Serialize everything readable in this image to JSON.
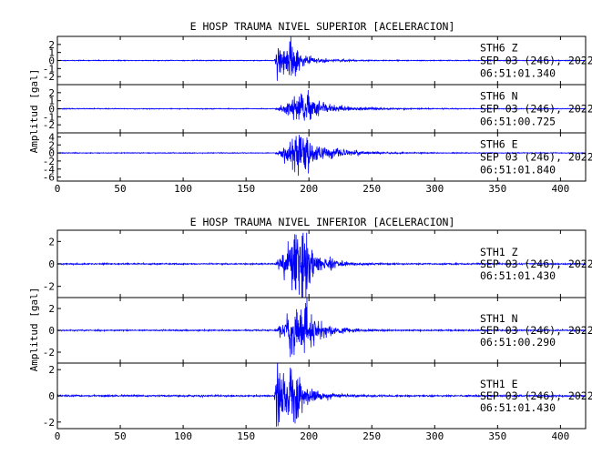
{
  "colors": {
    "trace": "#0000ff",
    "axes": "#000000",
    "background": "#ffffff"
  },
  "chart_data": [
    {
      "type": "line",
      "title": "E HOSP TRAUMA NIVEL SUPERIOR [ACELERACION]",
      "xlabel": "",
      "ylabel": "Amplitud [gal]",
      "xlim": [
        0,
        420
      ],
      "x_ticks": [
        0,
        50,
        100,
        150,
        200,
        250,
        300,
        350,
        400
      ],
      "grid": false,
      "panels": [
        {
          "station": "STH6",
          "component": "Z",
          "date_line": "SEP 03 (246), 2022",
          "time_line": "06:51:01.340",
          "ylim": [
            -3,
            3
          ],
          "y_ticks": [
            -2,
            -1,
            0,
            1,
            2
          ],
          "onset": 172,
          "peak_time": 175,
          "peak_amplitude": 1.9,
          "decay": 15,
          "second_phase_time": 188,
          "second_phase_amplitude": 1.3,
          "noise": 0.04,
          "seed": 11
        },
        {
          "station": "STH6",
          "component": "N",
          "date_line": "SEP 03 (246), 2022",
          "time_line": "06:51:00.725",
          "ylim": [
            -3,
            3
          ],
          "y_ticks": [
            -2,
            -1,
            0,
            1,
            2
          ],
          "onset": 172,
          "peak_time": 188,
          "peak_amplitude": 1.6,
          "decay": 22,
          "second_phase_time": 195,
          "second_phase_amplitude": 1.0,
          "noise": 0.04,
          "seed": 23
        },
        {
          "station": "STH6",
          "component": "E",
          "date_line": "SEP 03 (246), 2022",
          "time_line": "06:51:01.840",
          "ylim": [
            -7,
            5
          ],
          "y_ticks": [
            -6,
            -4,
            -2,
            0,
            2,
            4
          ],
          "onset": 172,
          "peak_time": 188,
          "peak_amplitude": 4.0,
          "decay": 22,
          "second_phase_time": 196,
          "second_phase_amplitude": 2.4,
          "noise": 0.08,
          "seed": 37
        }
      ]
    },
    {
      "type": "line",
      "title": "E HOSP TRAUMA NIVEL INFERIOR [ACELERACION]",
      "xlabel": "",
      "ylabel": "Amplitud [gal]",
      "xlim": [
        0,
        420
      ],
      "x_ticks": [
        0,
        50,
        100,
        150,
        200,
        250,
        300,
        350,
        400
      ],
      "grid": false,
      "panels": [
        {
          "station": "STH1",
          "component": "Z",
          "date_line": "SEP 03 (246), 2022",
          "time_line": "06:51:01.430",
          "ylim": [
            -3,
            3
          ],
          "y_ticks": [
            -2,
            0,
            2
          ],
          "onset": 172,
          "peak_time": 189,
          "peak_amplitude": 2.7,
          "decay": 14,
          "second_phase_time": 196,
          "second_phase_amplitude": 1.2,
          "noise": 0.05,
          "seed": 41
        },
        {
          "station": "STH1",
          "component": "N",
          "date_line": "SEP 03 (246), 2022",
          "time_line": "06:51:00.290",
          "ylim": [
            -3,
            3
          ],
          "y_ticks": [
            -2,
            0,
            2
          ],
          "onset": 172,
          "peak_time": 188,
          "peak_amplitude": 2.5,
          "decay": 15,
          "second_phase_time": 195,
          "second_phase_amplitude": 1.2,
          "noise": 0.05,
          "seed": 53
        },
        {
          "station": "STH1",
          "component": "E",
          "date_line": "SEP 03 (246), 2022",
          "time_line": "06:51:01.430",
          "ylim": [
            -2.5,
            2.5
          ],
          "y_ticks": [
            -2,
            0,
            2
          ],
          "onset": 172,
          "peak_time": 175,
          "peak_amplitude": 2.3,
          "decay": 15,
          "second_phase_time": 189,
          "second_phase_amplitude": 1.5,
          "noise": 0.05,
          "seed": 67
        }
      ]
    }
  ]
}
